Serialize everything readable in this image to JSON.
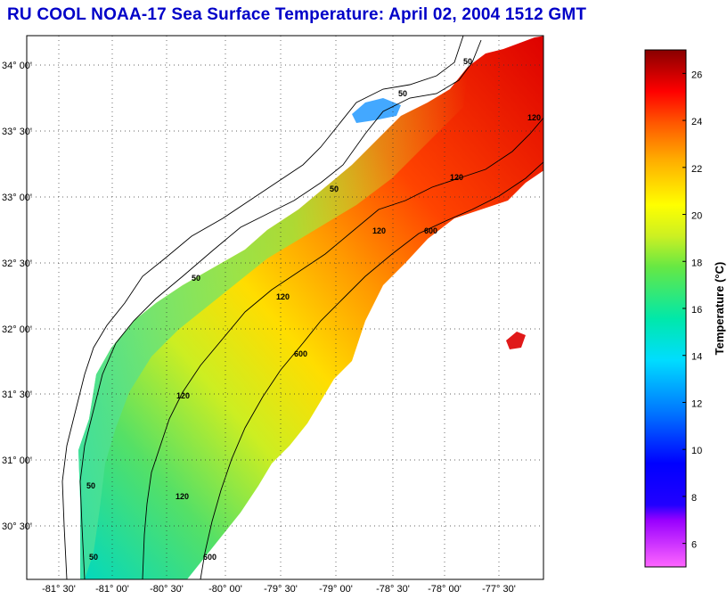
{
  "title": "RU COOL  NOAA-17  Sea Surface Temperature:  April 02, 2004 1512 GMT",
  "map": {
    "latitude_labels": [
      "34° 00'",
      "33° 30'",
      "33° 00'",
      "32° 30'",
      "32° 00'",
      "31° 30'",
      "31° 00'",
      "30° 30'"
    ],
    "longitude_labels": [
      "-81° 30'",
      "-81° 00'",
      "-80° 30'",
      "-80° 00'",
      "-79° 30'",
      "-79° 00'",
      "-78° 30'",
      "-78° 00'",
      "-77° 30'"
    ],
    "isobath_labels": [
      "50",
      "50",
      "50",
      "50",
      "50",
      "50",
      "120",
      "120",
      "120",
      "120",
      "120",
      "120",
      "600",
      "600",
      "600"
    ]
  },
  "colorbar": {
    "title": "Temperature (°C)",
    "ticks": [
      "6",
      "8",
      "10",
      "12",
      "14",
      "16",
      "18",
      "20",
      "22",
      "24",
      "26"
    ],
    "min": 5,
    "max": 27,
    "colors": [
      "#ff55ff",
      "#8800ff",
      "#0000ff",
      "#0066ff",
      "#00ccff",
      "#00e0b0",
      "#33e066",
      "#aaee22",
      "#ffff00",
      "#ffaa00",
      "#ff5500",
      "#ff0000",
      "#cc0000",
      "#880000"
    ]
  }
}
